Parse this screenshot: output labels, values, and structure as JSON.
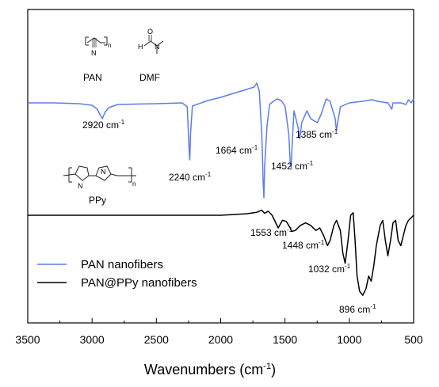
{
  "chart_data": {
    "type": "line",
    "xlabel": "Wavenumbers",
    "xlabel_unit": "cm",
    "xlabel_unit_exp": "-1",
    "ylabel": "",
    "xlim": [
      3500,
      500
    ],
    "x_reversed": true,
    "x_ticks": [
      3500,
      3000,
      2500,
      2000,
      1500,
      1000,
      500
    ],
    "grid": false,
    "legend_position": "bottom-left",
    "series": [
      {
        "name": "PAN nanofibers",
        "color": "#5b7cf0",
        "points": [
          [
            3500,
            0.0
          ],
          [
            3300,
            0.0
          ],
          [
            3100,
            0.01
          ],
          [
            3000,
            0.03
          ],
          [
            2960,
            0.08
          ],
          [
            2940,
            0.14
          ],
          [
            2920,
            0.2
          ],
          [
            2900,
            0.12
          ],
          [
            2870,
            0.06
          ],
          [
            2800,
            0.02
          ],
          [
            2500,
            0.01
          ],
          [
            2300,
            0.0
          ],
          [
            2260,
            0.05
          ],
          [
            2245,
            0.6
          ],
          [
            2240,
            0.72
          ],
          [
            2235,
            0.4
          ],
          [
            2220,
            0.04
          ],
          [
            2100,
            -0.03
          ],
          [
            2000,
            -0.07
          ],
          [
            1900,
            -0.12
          ],
          [
            1800,
            -0.17
          ],
          [
            1740,
            -0.2
          ],
          [
            1720,
            -0.25
          ],
          [
            1700,
            -0.15
          ],
          [
            1680,
            0.4
          ],
          [
            1670,
            1.0
          ],
          [
            1664,
            1.2
          ],
          [
            1658,
            0.8
          ],
          [
            1640,
            0.3
          ],
          [
            1620,
            0.02
          ],
          [
            1590,
            -0.02
          ],
          [
            1560,
            -0.05
          ],
          [
            1530,
            -0.03
          ],
          [
            1500,
            0.04
          ],
          [
            1470,
            0.4
          ],
          [
            1460,
            0.75
          ],
          [
            1452,
            0.82
          ],
          [
            1444,
            0.5
          ],
          [
            1430,
            0.1
          ],
          [
            1400,
            0.3
          ],
          [
            1385,
            0.45
          ],
          [
            1370,
            0.25
          ],
          [
            1330,
            0.1
          ],
          [
            1300,
            0.2
          ],
          [
            1250,
            0.25
          ],
          [
            1220,
            0.15
          ],
          [
            1180,
            -0.05
          ],
          [
            1150,
            -0.02
          ],
          [
            1110,
            0.2
          ],
          [
            1100,
            0.35
          ],
          [
            1090,
            0.25
          ],
          [
            1070,
            0.05
          ],
          [
            1000,
            0.0
          ],
          [
            900,
            -0.02
          ],
          [
            820,
            -0.04
          ],
          [
            780,
            -0.02
          ],
          [
            700,
            0.0
          ],
          [
            670,
            0.08
          ],
          [
            660,
            0.0
          ],
          [
            600,
            0.0
          ],
          [
            560,
            0.02
          ],
          [
            540,
            -0.04
          ],
          [
            520,
            0.0
          ],
          [
            500,
            -0.05
          ]
        ]
      },
      {
        "name": "PAN@PPy nanofibers",
        "color": "#000000",
        "points": [
          [
            3500,
            0.0
          ],
          [
            2500,
            0.0
          ],
          [
            2000,
            0.0
          ],
          [
            1800,
            -0.03
          ],
          [
            1720,
            -0.06
          ],
          [
            1680,
            -0.1
          ],
          [
            1660,
            -0.04
          ],
          [
            1630,
            -0.08
          ],
          [
            1600,
            0.0
          ],
          [
            1553,
            0.25
          ],
          [
            1520,
            0.1
          ],
          [
            1490,
            0.12
          ],
          [
            1460,
            0.25
          ],
          [
            1448,
            0.32
          ],
          [
            1420,
            0.3
          ],
          [
            1380,
            0.2
          ],
          [
            1340,
            0.15
          ],
          [
            1300,
            0.2
          ],
          [
            1260,
            0.3
          ],
          [
            1230,
            0.25
          ],
          [
            1200,
            0.4
          ],
          [
            1170,
            0.6
          ],
          [
            1150,
            0.5
          ],
          [
            1120,
            0.2
          ],
          [
            1100,
            0.1
          ],
          [
            1070,
            0.3
          ],
          [
            1050,
            0.75
          ],
          [
            1032,
            0.95
          ],
          [
            1010,
            0.5
          ],
          [
            990,
            0.0
          ],
          [
            970,
            -0.05
          ],
          [
            955,
            0.5
          ],
          [
            940,
            1.2
          ],
          [
            920,
            1.5
          ],
          [
            896,
            1.58
          ],
          [
            870,
            1.45
          ],
          [
            850,
            1.2
          ],
          [
            830,
            1.3
          ],
          [
            810,
            1.0
          ],
          [
            790,
            0.6
          ],
          [
            760,
            0.2
          ],
          [
            740,
            0.1
          ],
          [
            720,
            0.5
          ],
          [
            700,
            0.8
          ],
          [
            680,
            0.5
          ],
          [
            660,
            0.15
          ],
          [
            640,
            0.1
          ],
          [
            620,
            0.5
          ],
          [
            600,
            0.6
          ],
          [
            580,
            0.4
          ],
          [
            560,
            0.2
          ],
          [
            540,
            0.1
          ],
          [
            520,
            0.05
          ],
          [
            500,
            0.0
          ]
        ]
      }
    ],
    "annotations": [
      {
        "label": "2920 cm",
        "sup": "-1",
        "series": 0
      },
      {
        "label": "2240 cm",
        "sup": "-1",
        "series": 0
      },
      {
        "label": "1664 cm",
        "sup": "-1",
        "series": 0
      },
      {
        "label": "1452 cm",
        "sup": "-1",
        "series": 0
      },
      {
        "label": "1385 cm",
        "sup": "-1",
        "series": 0
      },
      {
        "label": "1553 cm",
        "sup": "-1",
        "series": 1
      },
      {
        "label": "1448 cm",
        "sup": "-1",
        "series": 1
      },
      {
        "label": "1032 cm",
        "sup": "-1",
        "series": 1
      },
      {
        "label": "896 cm",
        "sup": "-1",
        "series": 1
      }
    ],
    "structure_labels": {
      "pan": "PAN",
      "dmf": "DMF",
      "ppy": "PPy",
      "subscript_n": "n",
      "atom_n": "N",
      "atom_h": "H",
      "atom_o": "O",
      "atom_nh": "H"
    }
  }
}
